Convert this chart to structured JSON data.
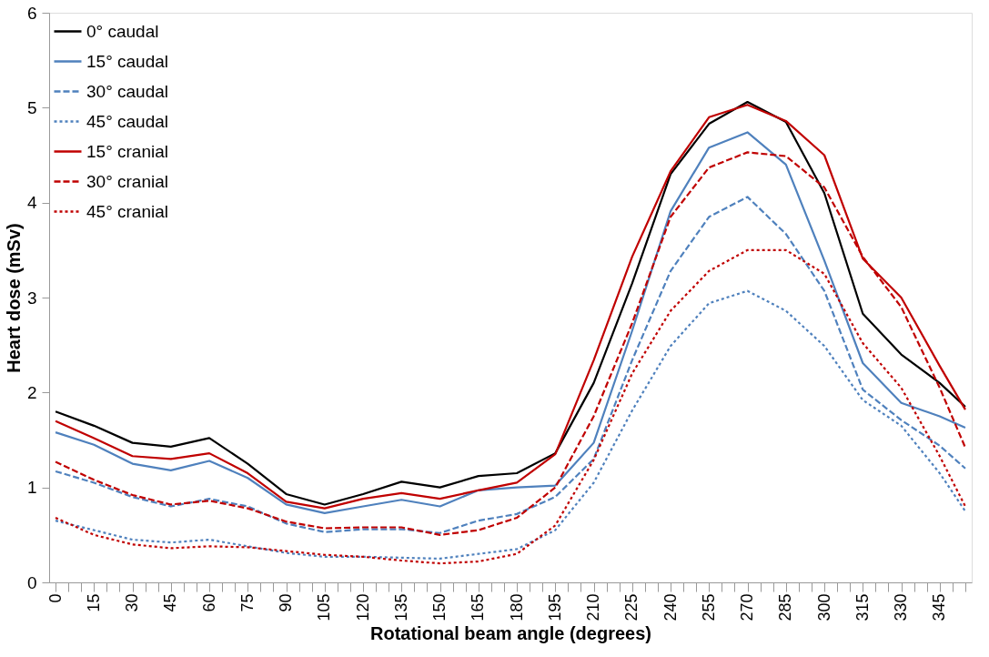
{
  "chart_data": {
    "type": "line",
    "xlabel": "Rotational beam angle (degrees)",
    "ylabel": "Heart dose (mSv)",
    "x": [
      0,
      15,
      30,
      45,
      60,
      75,
      90,
      105,
      120,
      135,
      150,
      165,
      180,
      195,
      210,
      225,
      240,
      255,
      270,
      285,
      300,
      315,
      330,
      345,
      355
    ],
    "series": [
      {
        "name": "0° caudal",
        "color": "#000000",
        "line_style": "solid",
        "values": [
          1.8,
          1.65,
          1.47,
          1.43,
          1.52,
          1.25,
          0.93,
          0.82,
          0.93,
          1.06,
          1.0,
          1.12,
          1.15,
          1.36,
          2.1,
          3.15,
          4.3,
          4.83,
          5.06,
          4.85,
          4.1,
          2.83,
          2.4,
          2.1,
          1.85
        ]
      },
      {
        "name": "15° caudal",
        "color": "#4f81bd",
        "line_style": "solid",
        "values": [
          1.58,
          1.45,
          1.25,
          1.18,
          1.28,
          1.1,
          0.82,
          0.73,
          0.8,
          0.87,
          0.8,
          0.97,
          1.0,
          1.02,
          1.47,
          2.65,
          3.91,
          4.58,
          4.74,
          4.4,
          3.39,
          2.31,
          1.89,
          1.75,
          1.63
        ]
      },
      {
        "name": "30° caudal",
        "color": "#4f81bd",
        "line_style": "dashed",
        "values": [
          1.17,
          1.05,
          0.9,
          0.8,
          0.88,
          0.8,
          0.62,
          0.53,
          0.56,
          0.56,
          0.52,
          0.65,
          0.72,
          0.9,
          1.3,
          2.34,
          3.28,
          3.85,
          4.06,
          3.67,
          3.07,
          2.03,
          1.71,
          1.44,
          1.2
        ]
      },
      {
        "name": "45° caudal",
        "color": "#4f81bd",
        "line_style": "dotted",
        "values": [
          0.65,
          0.55,
          0.45,
          0.42,
          0.45,
          0.38,
          0.31,
          0.27,
          0.27,
          0.26,
          0.25,
          0.3,
          0.35,
          0.55,
          1.05,
          1.81,
          2.49,
          2.94,
          3.07,
          2.86,
          2.49,
          1.92,
          1.65,
          1.15,
          0.75
        ]
      },
      {
        "name": "15° cranial",
        "color": "#c00000",
        "line_style": "solid",
        "values": [
          1.7,
          1.52,
          1.33,
          1.3,
          1.36,
          1.15,
          0.85,
          0.78,
          0.88,
          0.94,
          0.88,
          0.97,
          1.05,
          1.35,
          2.34,
          3.43,
          4.33,
          4.9,
          5.03,
          4.86,
          4.5,
          3.41,
          3.0,
          2.28,
          1.82
        ]
      },
      {
        "name": "30° cranial",
        "color": "#c00000",
        "line_style": "dashed",
        "values": [
          1.27,
          1.08,
          0.92,
          0.82,
          0.86,
          0.78,
          0.64,
          0.57,
          0.58,
          0.58,
          0.5,
          0.55,
          0.68,
          1.0,
          1.75,
          2.73,
          3.85,
          4.37,
          4.53,
          4.49,
          4.16,
          3.43,
          2.9,
          2.05,
          1.42
        ]
      },
      {
        "name": "45° cranial",
        "color": "#c00000",
        "line_style": "dotted",
        "values": [
          0.68,
          0.5,
          0.4,
          0.36,
          0.38,
          0.37,
          0.33,
          0.29,
          0.27,
          0.23,
          0.2,
          0.22,
          0.3,
          0.6,
          1.29,
          2.2,
          2.86,
          3.28,
          3.5,
          3.5,
          3.25,
          2.52,
          2.05,
          1.33,
          0.8
        ]
      }
    ],
    "xlim": [
      -2.5,
      357.5
    ],
    "xticks": [
      0,
      {
        "value": 5,
        "label": null
      },
      {
        "value": 10,
        "label": null
      },
      15,
      {
        "value": 20,
        "label": null
      },
      {
        "value": 25,
        "label": null
      },
      30,
      {
        "value": 35,
        "label": null
      },
      {
        "value": 40,
        "label": null
      },
      45,
      {
        "value": 50,
        "label": null
      },
      {
        "value": 55,
        "label": null
      },
      60,
      {
        "value": 65,
        "label": null
      },
      {
        "value": 70,
        "label": null
      },
      75,
      {
        "value": 80,
        "label": null
      },
      {
        "value": 85,
        "label": null
      },
      90,
      {
        "value": 95,
        "label": null
      },
      {
        "value": 100,
        "label": null
      },
      105,
      {
        "value": 110,
        "label": null
      },
      {
        "value": 115,
        "label": null
      },
      120,
      {
        "value": 125,
        "label": null
      },
      {
        "value": 130,
        "label": null
      },
      135,
      {
        "value": 140,
        "label": null
      },
      {
        "value": 145,
        "label": null
      },
      150,
      {
        "value": 155,
        "label": null
      },
      {
        "value": 160,
        "label": null
      },
      165,
      {
        "value": 170,
        "label": null
      },
      {
        "value": 175,
        "label": null
      },
      180,
      {
        "value": 185,
        "label": null
      },
      {
        "value": 190,
        "label": null
      },
      195,
      {
        "value": 200,
        "label": null
      },
      {
        "value": 205,
        "label": null
      },
      210,
      {
        "value": 215,
        "label": null
      },
      {
        "value": 220,
        "label": null
      },
      225,
      {
        "value": 230,
        "label": null
      },
      {
        "value": 235,
        "label": null
      },
      240,
      {
        "value": 245,
        "label": null
      },
      {
        "value": 250,
        "label": null
      },
      255,
      {
        "value": 260,
        "label": null
      },
      {
        "value": 265,
        "label": null
      },
      270,
      {
        "value": 275,
        "label": null
      },
      {
        "value": 280,
        "label": null
      },
      285,
      {
        "value": 290,
        "label": null
      },
      {
        "value": 295,
        "label": null
      },
      300,
      {
        "value": 305,
        "label": null
      },
      {
        "value": 310,
        "label": null
      },
      315,
      {
        "value": 320,
        "label": null
      },
      {
        "value": 325,
        "label": null
      },
      330,
      {
        "value": 335,
        "label": null
      },
      {
        "value": 340,
        "label": null
      },
      345,
      {
        "value": 350,
        "label": null
      },
      {
        "value": 355,
        "label": null
      }
    ],
    "ylim": [
      0,
      6
    ],
    "yticks": [
      0,
      1,
      2,
      3,
      4,
      5,
      6
    ],
    "grid": false,
    "legend": "top left",
    "marker": "none"
  }
}
